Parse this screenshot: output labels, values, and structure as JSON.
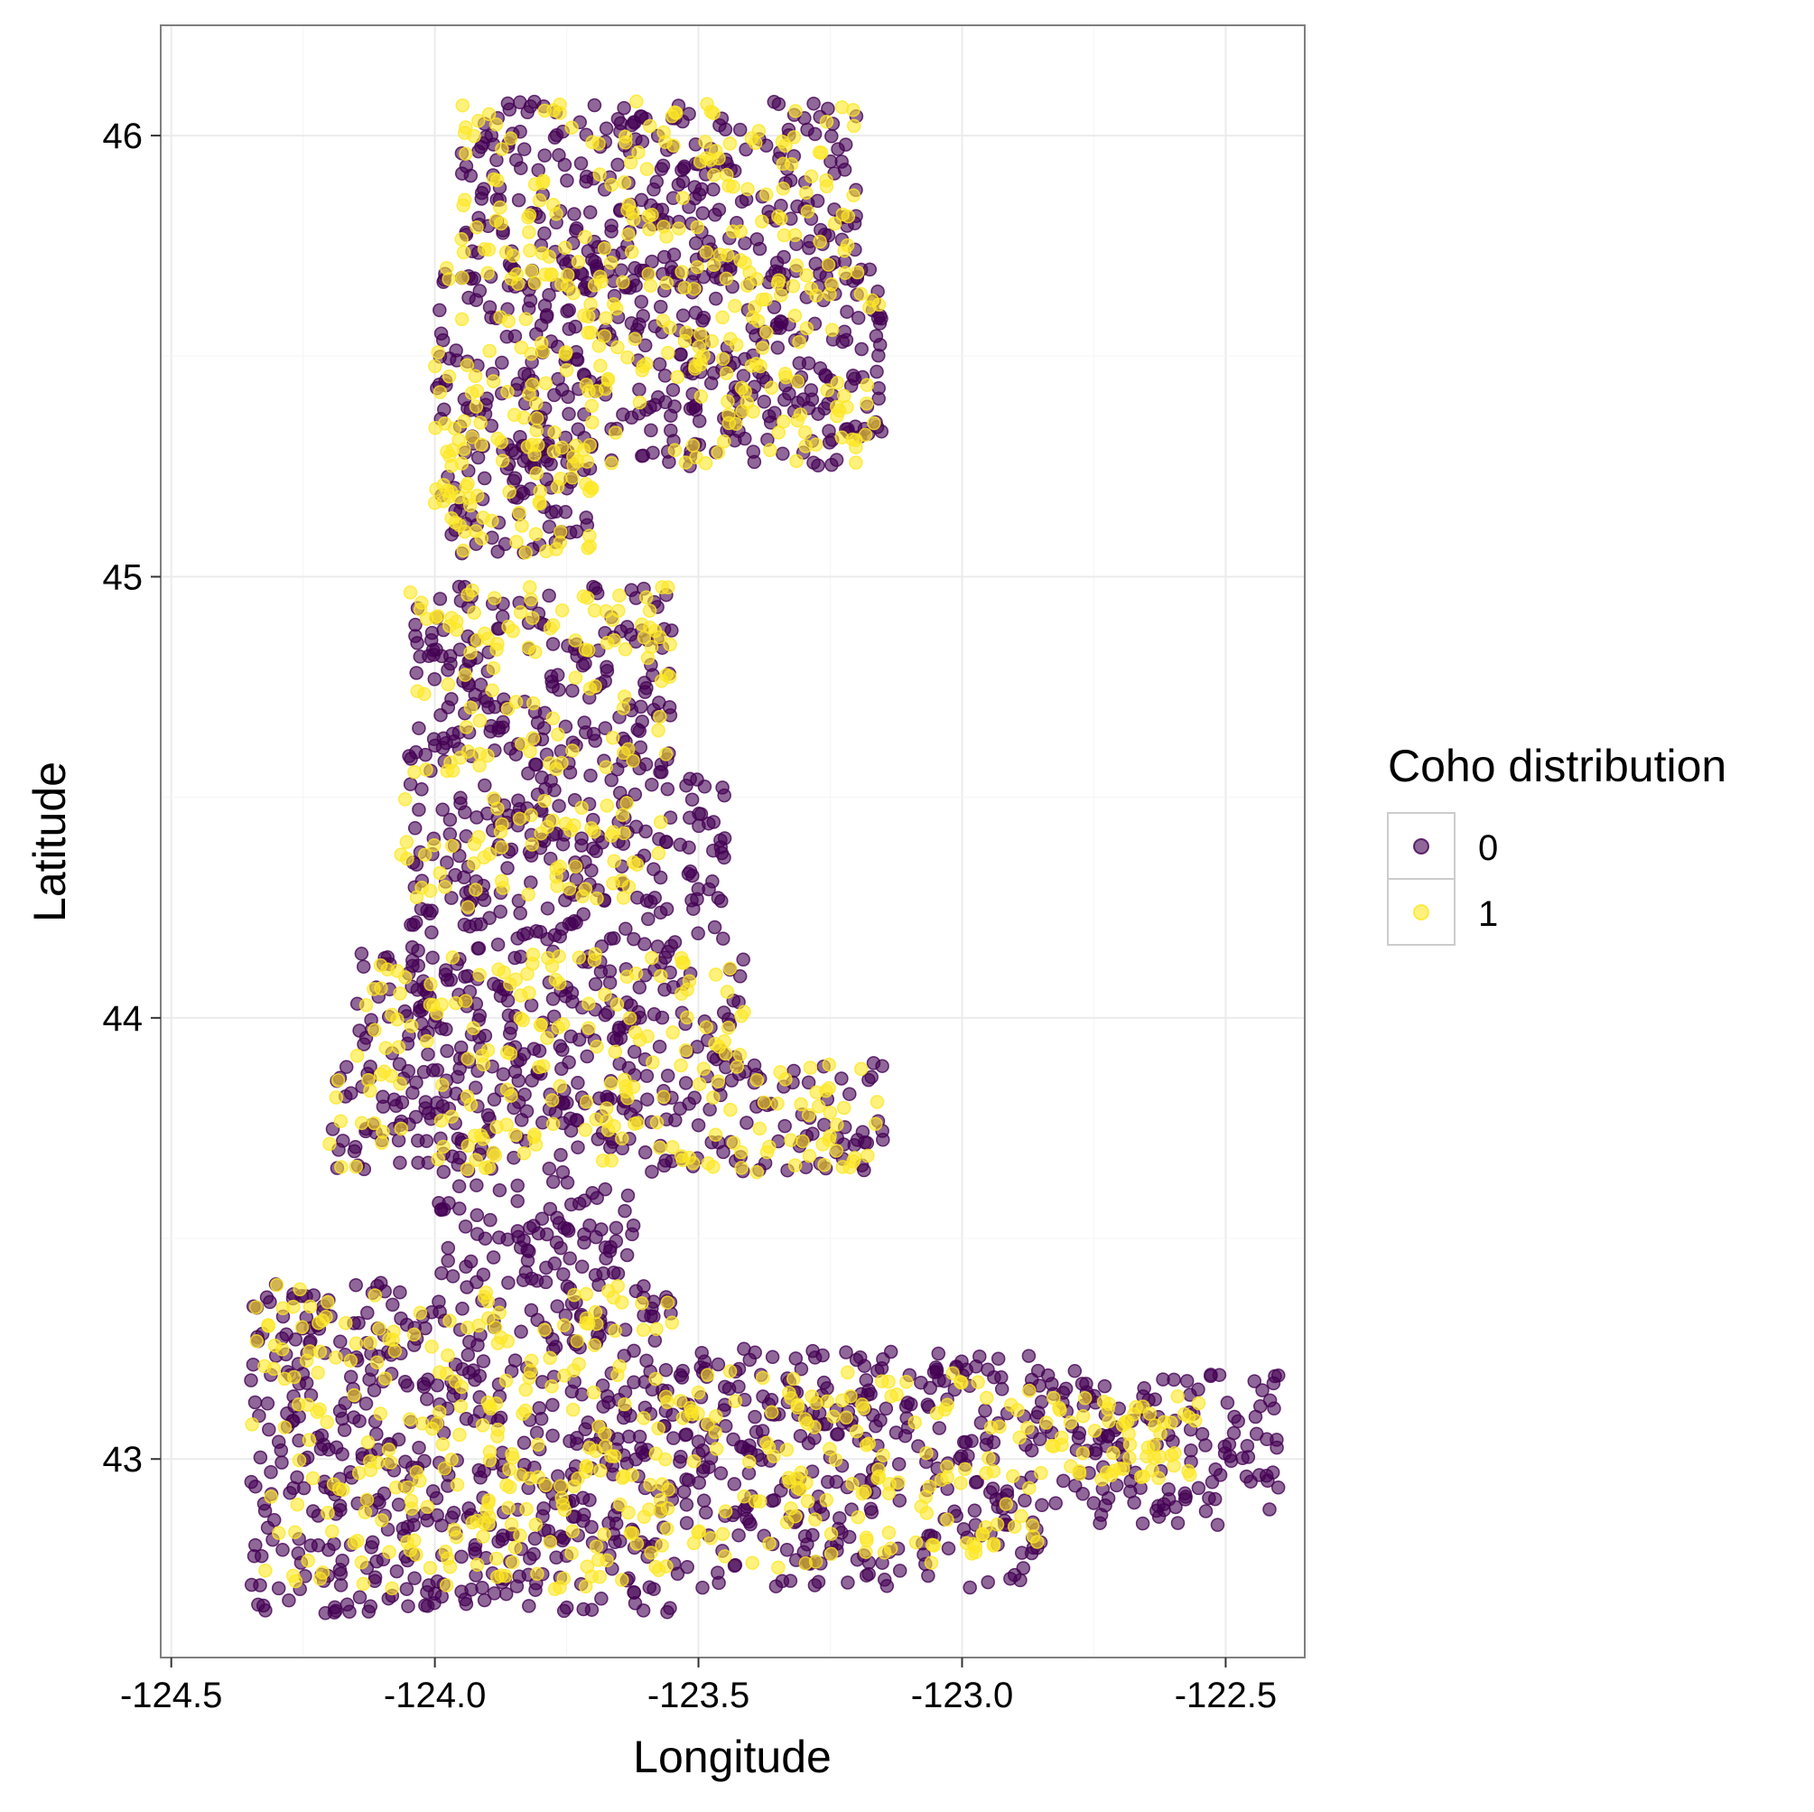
{
  "chart_data": {
    "type": "scatter",
    "title": "",
    "xlabel": "Longitude",
    "ylabel": "Latitude",
    "xlim": [
      -124.52,
      -122.35
    ],
    "ylim": [
      42.55,
      46.25
    ],
    "xticks": [
      -124.5,
      -124.0,
      -123.5,
      -123.0,
      -122.5
    ],
    "xtick_labels": [
      "-124.5",
      "-124.0",
      "-123.5",
      "-123.0",
      "-122.5"
    ],
    "yticks": [
      43,
      44,
      45,
      46
    ],
    "ytick_labels": [
      "43",
      "44",
      "45",
      "46"
    ],
    "grid": true,
    "legend": {
      "title": "Coho distribution",
      "position": "right",
      "entries": [
        {
          "label": "0",
          "color": "#440154"
        },
        {
          "label": "1",
          "color": "#FDE725"
        }
      ]
    },
    "series": [
      {
        "name": "0",
        "color": "#440154",
        "opacity": 0.6,
        "regions": [
          {
            "lon": [
              -123.95,
              -123.2
            ],
            "lat": [
              45.65,
              46.08
            ]
          },
          {
            "lon": [
              -124.0,
              -123.15
            ],
            "lat": [
              45.25,
              45.7
            ]
          },
          {
            "lon": [
              -124.0,
              -123.7
            ],
            "lat": [
              45.05,
              45.3
            ]
          },
          {
            "lon": [
              -124.05,
              -123.55
            ],
            "lat": [
              44.55,
              44.98
            ]
          },
          {
            "lon": [
              -124.05,
              -123.45
            ],
            "lat": [
              44.15,
              44.55
            ]
          },
          {
            "lon": [
              -124.15,
              -123.4
            ],
            "lat": [
              43.9,
              44.15
            ]
          },
          {
            "lon": [
              -124.2,
              -123.15
            ],
            "lat": [
              43.65,
              43.9
            ]
          },
          {
            "lon": [
              -124.0,
              -123.62
            ],
            "lat": [
              43.4,
              43.65
            ]
          },
          {
            "lon": [
              -124.35,
              -123.55
            ],
            "lat": [
              42.65,
              43.4
            ]
          },
          {
            "lon": [
              -123.55,
              -122.85
            ],
            "lat": [
              42.7,
              43.25
            ]
          },
          {
            "lon": [
              -122.85,
              -122.4
            ],
            "lat": [
              42.85,
              43.2
            ]
          }
        ]
      },
      {
        "name": "1",
        "color": "#FDE725",
        "opacity": 0.6,
        "regions": [
          {
            "lon": [
              -123.95,
              -123.2
            ],
            "lat": [
              45.65,
              46.08
            ]
          },
          {
            "lon": [
              -124.0,
              -123.15
            ],
            "lat": [
              45.25,
              45.7
            ]
          },
          {
            "lon": [
              -124.0,
              -123.7
            ],
            "lat": [
              45.05,
              45.3
            ]
          },
          {
            "lon": [
              -124.05,
              -123.55
            ],
            "lat": [
              44.55,
              44.98
            ]
          },
          {
            "lon": [
              -124.08,
              -123.55
            ],
            "lat": [
              44.25,
              44.5
            ]
          },
          {
            "lon": [
              -124.15,
              -123.4
            ],
            "lat": [
              43.9,
              44.15
            ]
          },
          {
            "lon": [
              -124.2,
              -123.15
            ],
            "lat": [
              43.65,
              43.9
            ]
          },
          {
            "lon": [
              -124.35,
              -123.55
            ],
            "lat": [
              42.7,
              43.4
            ]
          },
          {
            "lon": [
              -123.55,
              -122.85
            ],
            "lat": [
              42.75,
              43.2
            ]
          },
          {
            "lon": [
              -122.85,
              -122.55
            ],
            "lat": [
              42.95,
              43.15
            ]
          }
        ]
      }
    ]
  }
}
